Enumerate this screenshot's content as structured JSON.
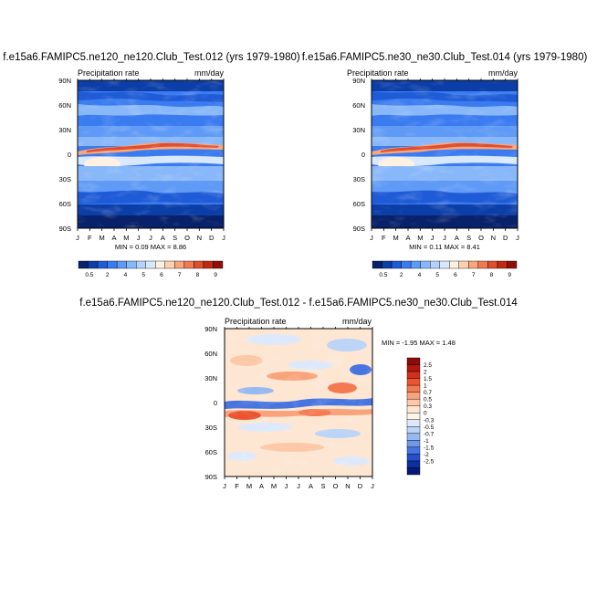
{
  "chart_data": [
    {
      "type": "heatmap",
      "title": "f.e15a6.FAMIPC5.ne120_ne120.Club_Test.012 (yrs 1979-1980)",
      "left_label": "Precipitation rate",
      "right_label": "mm/day",
      "x_ticks": [
        "J",
        "F",
        "M",
        "A",
        "M",
        "J",
        "J",
        "A",
        "S",
        "O",
        "N",
        "D",
        "J"
      ],
      "y_ticks": [
        "90N",
        "60N",
        "30N",
        "0",
        "30S",
        "60S",
        "90S"
      ],
      "ylim": [
        -90,
        90
      ],
      "min_max_text": "MIN =  0.09 MAX =   8.86",
      "summary": {
        "min": 0.09,
        "max": 8.86
      },
      "colorbar_labels": [
        "0.5",
        "2",
        "4",
        "5",
        "6",
        "7",
        "8",
        "9"
      ]
    },
    {
      "type": "heatmap",
      "title": "f.e15a6.FAMIPC5.ne30_ne30.Club_Test.014 (yrs 1979-1980)",
      "left_label": "Precipitation rate",
      "right_label": "mm/day",
      "x_ticks": [
        "J",
        "F",
        "M",
        "A",
        "M",
        "J",
        "J",
        "A",
        "S",
        "O",
        "N",
        "D",
        "J"
      ],
      "y_ticks": [
        "90N",
        "60N",
        "30N",
        "0",
        "30S",
        "60S",
        "90S"
      ],
      "ylim": [
        -90,
        90
      ],
      "min_max_text": "MIN =  0.11 MAX =   8.41",
      "summary": {
        "min": 0.11,
        "max": 8.41
      },
      "colorbar_labels": [
        "0.5",
        "2",
        "4",
        "5",
        "6",
        "7",
        "8",
        "9"
      ]
    },
    {
      "type": "heatmap",
      "title": "f.e15a6.FAMIPC5.ne120_ne120.Club_Test.012 - f.e15a6.FAMIPC5.ne30_ne30.Club_Test.014",
      "left_label": "Precipitation rate",
      "right_label": "mm/day",
      "x_ticks": [
        "J",
        "F",
        "M",
        "A",
        "M",
        "J",
        "J",
        "A",
        "S",
        "O",
        "N",
        "D",
        "J"
      ],
      "y_ticks": [
        "90N",
        "60N",
        "30N",
        "0",
        "30S",
        "60S",
        "90S"
      ],
      "ylim": [
        -90,
        90
      ],
      "min_max_text": "MIN =  -1.95 MAX =   1.48",
      "summary": {
        "min": -1.95,
        "max": 1.48
      },
      "colorbar_labels": [
        "2.5",
        "2",
        "1.5",
        "1",
        "0.7",
        "0.5",
        "0.3",
        "0",
        "-0.3",
        "-0.5",
        "-0.7",
        "-1",
        "-1.5",
        "-2",
        "-2.5"
      ]
    }
  ],
  "colors": {
    "precip_scale": [
      "#08216b",
      "#0c3ea8",
      "#1f5bd6",
      "#3a7bf0",
      "#5f9af6",
      "#88b7fa",
      "#b3d2fd",
      "#d8e8ff",
      "#fff0e0",
      "#fdd0b0",
      "#f9a67c",
      "#f07b52",
      "#df4f2d",
      "#bf2a13",
      "#8f0f06"
    ],
    "diff_scale": [
      "#8b0a0a",
      "#b0170f",
      "#d2301a",
      "#ec5430",
      "#f47a52",
      "#f8a37c",
      "#fcc8a8",
      "#fde6d2",
      "#fdf4e8",
      "#dde9fb",
      "#bcd4f7",
      "#96b9f2",
      "#6f98ec",
      "#4775e0",
      "#2450cc",
      "#0d2ea0",
      "#061877"
    ]
  }
}
